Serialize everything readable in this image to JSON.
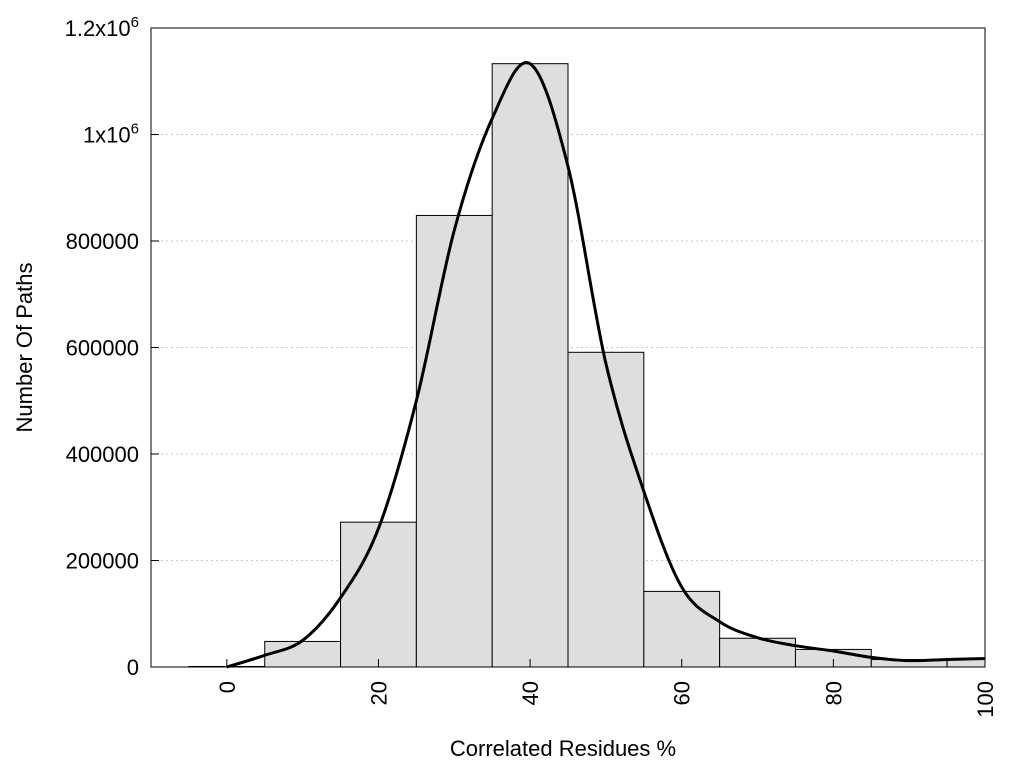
{
  "chart_data": {
    "type": "bar",
    "title": "",
    "xlabel": "Correlated Residues %",
    "ylabel": "Number Of Paths",
    "xlim": [
      -10,
      100
    ],
    "ylim": [
      0,
      1200000
    ],
    "x_ticks": [
      {
        "value": 0,
        "label": "0"
      },
      {
        "value": 20,
        "label": "20"
      },
      {
        "value": 40,
        "label": "40"
      },
      {
        "value": 60,
        "label": "60"
      },
      {
        "value": 80,
        "label": "80"
      },
      {
        "value": 100,
        "label": "100"
      }
    ],
    "y_ticks": [
      {
        "value": 0,
        "label": "0"
      },
      {
        "value": 200000,
        "label": "200000"
      },
      {
        "value": 400000,
        "label": "400000"
      },
      {
        "value": 600000,
        "label": "600000"
      },
      {
        "value": 800000,
        "label": "800000"
      },
      {
        "value": 1000000,
        "label": "1x10",
        "sup": "6"
      },
      {
        "value": 1200000,
        "label": "1.2x10",
        "sup": "6"
      }
    ],
    "bin_width": 10,
    "bins": [
      0,
      10,
      20,
      30,
      40,
      50,
      60,
      70,
      80,
      90,
      100
    ],
    "values": [
      1000,
      48000,
      272000,
      848000,
      1133000,
      591000,
      142000,
      54000,
      33000,
      14000,
      14000
    ],
    "bar_color": "#dedede",
    "curve": {
      "x": [
        0,
        5,
        10,
        15,
        20,
        25,
        30,
        35,
        40,
        45,
        50,
        55,
        60,
        65,
        70,
        75,
        80,
        85,
        90,
        95,
        100
      ],
      "y": [
        0,
        22000,
        50000,
        130000,
        260000,
        500000,
        820000,
        1030000,
        1133000,
        940000,
        570000,
        330000,
        150000,
        85000,
        55000,
        40000,
        30000,
        18000,
        12000,
        14000,
        16000
      ]
    },
    "grid": "horizontal-dotted",
    "legend": "none"
  }
}
